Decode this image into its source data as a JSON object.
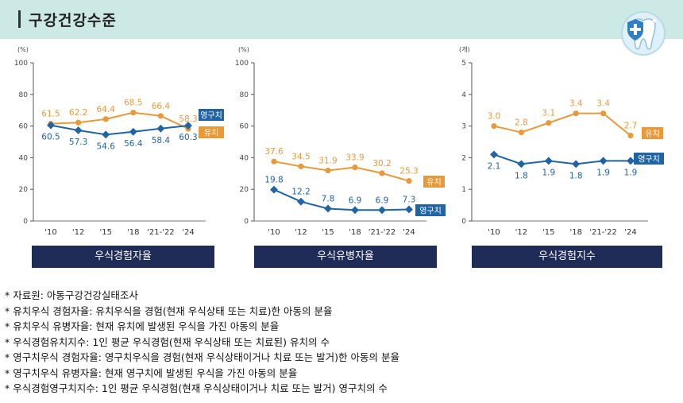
{
  "header": {
    "title": "구강건강수준",
    "accent_color": "#cce9e6",
    "logo_icon": "tooth-shield-icon"
  },
  "colors": {
    "primary": "#2064a6",
    "deciduous": "#e89a3b",
    "banner": "#202c58"
  },
  "chart_data": [
    {
      "type": "line",
      "title": "우식경험자율",
      "unit": "(%)",
      "categories": [
        "'10",
        "'12",
        "'15",
        "'18",
        "'21-'22",
        "'24"
      ],
      "ylim": [
        0,
        100
      ],
      "yticks": [
        0,
        20,
        40,
        60,
        80,
        100
      ],
      "grid": false,
      "series": [
        {
          "name": "유치",
          "values": [
            61.5,
            62.2,
            64.4,
            68.5,
            66.4,
            58.3
          ],
          "labels": [
            "61.5",
            "62.2",
            "64.4",
            "68.5",
            "66.4",
            "58.3"
          ]
        },
        {
          "name": "영구치",
          "values": [
            60.5,
            57.3,
            54.6,
            56.4,
            58.4,
            60.3
          ],
          "labels": [
            "60.5",
            "57.3",
            "54.6",
            "56.4",
            "58.4",
            "60.3"
          ]
        }
      ]
    },
    {
      "type": "line",
      "title": "우식유병자율",
      "unit": "(%)",
      "categories": [
        "'10",
        "'12",
        "'15",
        "'18",
        "'21-'22",
        "'24"
      ],
      "ylim": [
        0,
        100
      ],
      "yticks": [
        0,
        20,
        40,
        60,
        80,
        100
      ],
      "grid": false,
      "series": [
        {
          "name": "유치",
          "values": [
            37.6,
            34.5,
            31.9,
            33.9,
            30.2,
            25.3
          ],
          "labels": [
            "37.6",
            "34.5",
            "31.9",
            "33.9",
            "30.2",
            "25.3"
          ]
        },
        {
          "name": "영구치",
          "values": [
            19.8,
            12.2,
            7.8,
            6.9,
            6.9,
            7.3
          ],
          "labels": [
            "19.8",
            "12.2",
            "7.8",
            "6.9",
            "6.9",
            "7.3"
          ]
        }
      ]
    },
    {
      "type": "line",
      "title": "우식경험지수",
      "unit": "(개)",
      "categories": [
        "'10",
        "'12",
        "'15",
        "'18",
        "'21-'22",
        "'24"
      ],
      "ylim": [
        0,
        5
      ],
      "yticks": [
        0,
        1,
        2,
        3,
        4,
        5
      ],
      "grid": false,
      "series": [
        {
          "name": "유치",
          "values": [
            3.0,
            2.8,
            3.1,
            3.4,
            3.4,
            2.7
          ],
          "labels": [
            "3.0",
            "2.8",
            "3.1",
            "3.4",
            "3.4",
            "2.7"
          ]
        },
        {
          "name": "영구치",
          "values": [
            2.1,
            1.8,
            1.9,
            1.8,
            1.9,
            1.9
          ],
          "labels": [
            "2.1",
            "1.8",
            "1.9",
            "1.8",
            "1.9",
            "1.9"
          ]
        }
      ]
    }
  ],
  "notes": [
    "자료원: 아동구강건강실태조사",
    "유치우식 경험자율: 유치우식을 경험(현재 우식상태 또는 치료)한 아동의 분율",
    "유치우식 유병자율: 현재 유치에 발생된 우식을 가진 아동의 분율",
    "우식경험유치지수: 1인 평균 우식경험(현재 우식상태 또는 치료된) 유치의 수",
    "영구치우식 경험자율: 영구치우식을 경험(현재 우식상태이거나 치료 또는 발거)한 아동의 분율",
    "영구치우식 유병자율: 현재 영구치에 발생된 우식을 가진 아동의 분율",
    "우식경험영구치지수: 1인 평균 우식경험(현재 우식상태이거나 치료 또는 발거) 영구치의 수"
  ]
}
